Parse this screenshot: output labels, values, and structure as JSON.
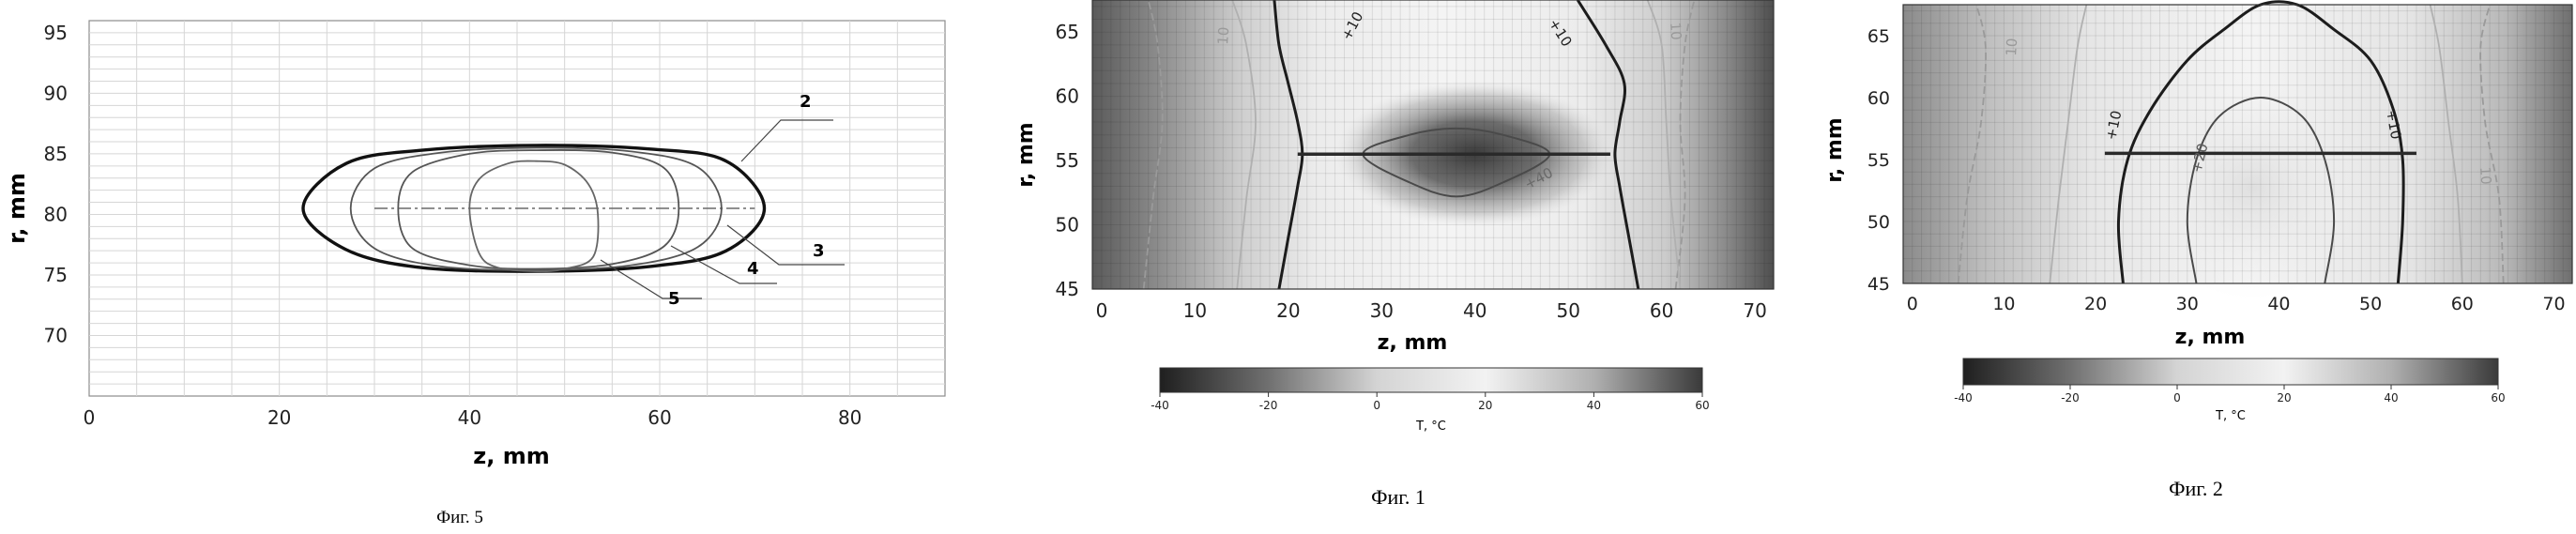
{
  "chart_data": [
    {
      "type": "line",
      "caption": "Фиг. 5",
      "xlabel": "z, mm",
      "ylabel": "r, mm",
      "xlim": [
        0,
        90
      ],
      "ylim": [
        65,
        96
      ],
      "xticks": [
        0,
        20,
        40,
        60,
        80
      ],
      "yticks": [
        70,
        75,
        80,
        85,
        90,
        95
      ],
      "grid": true,
      "curve_labels": [
        "2",
        "3",
        "4",
        "5"
      ],
      "series": [
        {
          "name": "2",
          "x": [
            22.5,
            27,
            35,
            47,
            59,
            67,
            71,
            67,
            59,
            47,
            35,
            27,
            22.5
          ],
          "y": [
            80.5,
            84.2,
            85.3,
            85.7,
            85.4,
            84.4,
            80.5,
            77.0,
            75.7,
            75.3,
            75.6,
            77.1,
            80.5
          ]
        },
        {
          "name": "3",
          "x": [
            27.5,
            30,
            37,
            47,
            57,
            64,
            66.5,
            64,
            57,
            47,
            37,
            30,
            27.5
          ],
          "y": [
            80.5,
            83.8,
            85.1,
            85.5,
            85.2,
            83.9,
            80.5,
            77.3,
            75.8,
            75.4,
            75.7,
            77.2,
            80.5
          ]
        },
        {
          "name": "4",
          "x": [
            32.5,
            34,
            40,
            47,
            55,
            60.5,
            62,
            60.5,
            55,
            47,
            40,
            34,
            32.5
          ],
          "y": [
            80.5,
            83.5,
            85.0,
            85.3,
            85.1,
            83.8,
            80.5,
            77.4,
            75.9,
            75.5,
            75.8,
            77.2,
            80.5
          ]
        },
        {
          "name": "5",
          "x": [
            40,
            41,
            44,
            47,
            50,
            52.5,
            53.5,
            53,
            50,
            47,
            43,
            41,
            40
          ],
          "y": [
            80.5,
            82.9,
            84.2,
            84.4,
            84.1,
            82.5,
            80.0,
            76.5,
            75.5,
            75.3,
            75.6,
            76.8,
            80.5
          ]
        }
      ],
      "axis_line": {
        "r": 80.5
      }
    },
    {
      "type": "heatmap",
      "caption": "Фиг. 1",
      "xlabel": "z, mm",
      "ylabel": "r, mm",
      "xlim": [
        -1,
        72
      ],
      "ylim": [
        45,
        67.5
      ],
      "xticks": [
        0,
        10,
        20,
        30,
        40,
        50,
        60,
        70
      ],
      "yticks": [
        45,
        50,
        55,
        60,
        65
      ],
      "grid": true,
      "colorbar": {
        "label": "T, °C",
        "min": -40,
        "max": 60,
        "ticks": [
          "-40",
          "-20",
          "0",
          "20",
          "40",
          "60"
        ]
      },
      "contour_labels": [
        "+10",
        "+10",
        "10",
        "10",
        "+40"
      ],
      "segment": {
        "z": [
          21,
          54.5
        ],
        "r": 55.5
      },
      "contours": [
        {
          "level": 10,
          "x": [
            19,
            20,
            21,
            21.5,
            21,
            20,
            19,
            18.5
          ],
          "y": [
            45,
            49,
            53,
            55.5,
            58,
            61,
            64,
            67.5
          ]
        },
        {
          "level": 10,
          "x": [
            57.5,
            56.5,
            55.5,
            55,
            55.5,
            56,
            54,
            51
          ],
          "y": [
            45,
            49,
            53,
            55.5,
            58,
            61,
            64,
            67.5
          ]
        },
        {
          "level": 40,
          "x": [
            28,
            33,
            38,
            43,
            48,
            43,
            38,
            33,
            28
          ],
          "y": [
            55.5,
            57.0,
            57.5,
            57.0,
            55.5,
            53.3,
            52.2,
            53.3,
            55.5
          ]
        }
      ]
    },
    {
      "type": "heatmap",
      "caption": "Фиг. 2",
      "xlabel": "z, mm",
      "ylabel": "r, mm",
      "xlim": [
        -1,
        72
      ],
      "ylim": [
        45,
        67.5
      ],
      "xticks": [
        0,
        10,
        20,
        30,
        40,
        50,
        60,
        70
      ],
      "yticks": [
        45,
        50,
        55,
        60,
        65
      ],
      "grid": true,
      "colorbar": {
        "label": "T, °C",
        "min": -40,
        "max": 60,
        "ticks": [
          "-40",
          "-20",
          "0",
          "20",
          "40",
          "60"
        ]
      },
      "contour_labels": [
        "+10",
        "+10",
        "+20",
        "10",
        "10"
      ],
      "segment": {
        "z": [
          21,
          55
        ],
        "r": 55.5
      },
      "contours": [
        {
          "level": 10,
          "x": [
            23,
            22.5,
            23.5,
            26,
            30,
            34,
            38,
            42,
            46,
            50,
            52.5,
            53.5,
            53.5,
            53
          ],
          "y": [
            45,
            50,
            55,
            59,
            63,
            65.5,
            67.5,
            67.5,
            65.5,
            63,
            59,
            55,
            50,
            45
          ]
        },
        {
          "level": 20,
          "x": [
            31,
            30,
            31,
            33.5,
            38,
            42.5,
            45,
            46,
            45
          ],
          "y": [
            45,
            50,
            55,
            58.5,
            60,
            58.5,
            55,
            50,
            45
          ]
        }
      ]
    }
  ]
}
